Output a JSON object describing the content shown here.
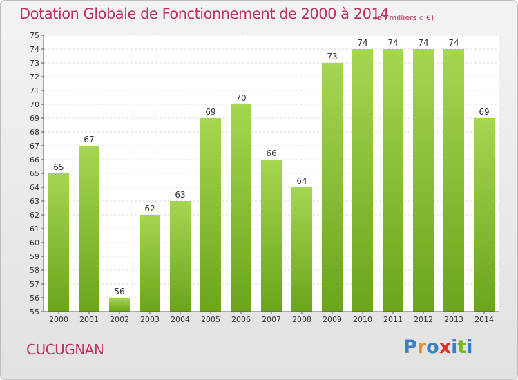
{
  "header": {
    "title": "Dotation Globale de Fonctionnement de 2000 à 2014",
    "unit": "(en milliers d'€)"
  },
  "footer": {
    "place": "CUCUGNAN",
    "logo": [
      "P",
      "r",
      "o",
      "x",
      "i",
      "t",
      "i"
    ]
  },
  "colors": {
    "title": "#c0325b",
    "bar_light": "#a6d64f",
    "bar_dark": "#6aa51a",
    "logo": [
      "#3c7fc7",
      "#f08a1d",
      "#3c7fc7",
      "#e0322d",
      "#3c7fc7",
      "#7ab51d",
      "#3c7fc7"
    ]
  },
  "chart_data": {
    "type": "bar",
    "categories": [
      "2000",
      "2001",
      "2002",
      "2003",
      "2004",
      "2005",
      "2006",
      "2007",
      "2008",
      "2009",
      "2010",
      "2011",
      "2012",
      "2013",
      "2014"
    ],
    "values": [
      65,
      67,
      56,
      62,
      63,
      69,
      70,
      66,
      64,
      73,
      74,
      74,
      74,
      74,
      69
    ],
    "ylim": [
      55,
      75
    ],
    "yticks": [
      55,
      56,
      57,
      58,
      59,
      60,
      61,
      62,
      63,
      64,
      65,
      66,
      67,
      68,
      69,
      70,
      71,
      72,
      73,
      74,
      75
    ],
    "grid": true
  }
}
